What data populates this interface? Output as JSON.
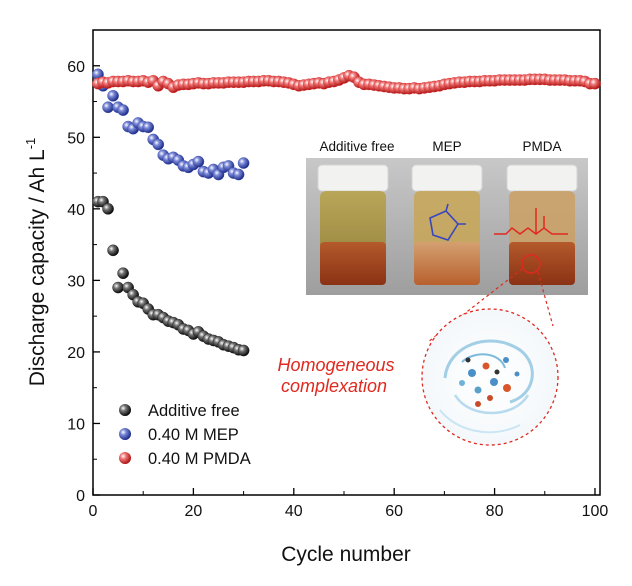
{
  "chart_data": {
    "type": "scatter",
    "xlabel": "Cycle number",
    "ylabel": "Discharge capacity / Ah L",
    "ylabel_sup": "-1",
    "xlim": [
      0,
      101
    ],
    "ylim": [
      0,
      65
    ],
    "xticks": [
      0,
      20,
      40,
      60,
      80,
      100
    ],
    "yticks": [
      0,
      10,
      20,
      30,
      40,
      50,
      60
    ],
    "xtick_labels": [
      "0",
      "20",
      "40",
      "60",
      "80",
      "100"
    ],
    "ytick_labels": [
      "0",
      "10",
      "20",
      "30",
      "40",
      "50",
      "60"
    ],
    "grid": false,
    "legend_position": "bottom-left",
    "series": [
      {
        "name": "Additive free",
        "color": "#222222",
        "x": [
          1,
          2,
          3,
          4,
          5,
          6,
          7,
          8,
          9,
          10,
          11,
          12,
          13,
          14,
          15,
          16,
          17,
          18,
          19,
          20,
          21,
          22,
          23,
          24,
          25,
          26,
          27,
          28,
          29,
          30
        ],
        "y": [
          41,
          41,
          40,
          34.2,
          29,
          31,
          29,
          28,
          27,
          26.8,
          26,
          25.2,
          25.2,
          24.8,
          24.3,
          24.1,
          23.8,
          23.2,
          23,
          22.5,
          22.8,
          22.2,
          21.8,
          21.6,
          21.4,
          21,
          20.8,
          20.6,
          20.3,
          20.2
        ]
      },
      {
        "name": "0.40 M MEP",
        "color": "#3d4fb0",
        "x": [
          1,
          2,
          3,
          4,
          5,
          6,
          7,
          8,
          9,
          10,
          11,
          12,
          13,
          14,
          15,
          16,
          17,
          18,
          19,
          20,
          21,
          22,
          23,
          24,
          25,
          26,
          27,
          28,
          29,
          30
        ],
        "y": [
          58.8,
          57.2,
          54.2,
          55.8,
          54.2,
          53.8,
          51.5,
          51.2,
          52,
          51.5,
          51.4,
          49.7,
          49,
          47.5,
          47,
          47.2,
          46.8,
          46,
          45.8,
          46.2,
          46.6,
          45.2,
          45,
          45.5,
          44.8,
          45.8,
          46,
          45,
          44.8,
          46.4
        ]
      },
      {
        "name": "0.40 M PMDA",
        "color": "#d92b2b",
        "x": [
          1,
          2,
          3,
          4,
          5,
          6,
          7,
          8,
          9,
          10,
          11,
          12,
          13,
          14,
          15,
          16,
          17,
          18,
          19,
          20,
          21,
          22,
          23,
          24,
          25,
          26,
          27,
          28,
          29,
          30,
          31,
          32,
          33,
          34,
          35,
          36,
          37,
          38,
          39,
          40,
          41,
          42,
          43,
          44,
          45,
          46,
          47,
          48,
          49,
          50,
          51,
          52,
          53,
          54,
          55,
          56,
          57,
          58,
          59,
          60,
          61,
          62,
          63,
          64,
          65,
          66,
          67,
          68,
          69,
          70,
          71,
          72,
          73,
          74,
          75,
          76,
          77,
          78,
          79,
          80,
          81,
          82,
          83,
          84,
          85,
          86,
          87,
          88,
          89,
          90,
          91,
          92,
          93,
          94,
          95,
          96,
          97,
          98,
          99,
          100
        ],
        "y": [
          57.5,
          57.7,
          57.6,
          57.8,
          57.8,
          57.8,
          57.9,
          57.8,
          57.8,
          57.9,
          57.7,
          57.9,
          57.2,
          57.8,
          57.5,
          57.0,
          57.3,
          57.4,
          57.4,
          57.5,
          57.6,
          57.5,
          57.5,
          57.6,
          57.6,
          57.6,
          57.7,
          57.7,
          57.7,
          57.7,
          57.8,
          57.8,
          57.8,
          57.9,
          57.9,
          57.8,
          57.8,
          57.7,
          57.6,
          57.4,
          57.2,
          57.3,
          57.4,
          57.5,
          57.6,
          57.5,
          57.7,
          57.8,
          58.0,
          58.3,
          58.6,
          58.4,
          57.7,
          57.4,
          57.4,
          57.3,
          57.2,
          57.1,
          57.0,
          56.9,
          56.9,
          56.8,
          56.8,
          56.9,
          56.8,
          56.9,
          57.0,
          57.1,
          57.2,
          57.4,
          57.5,
          57.6,
          57.7,
          57.7,
          57.8,
          57.8,
          57.8,
          57.9,
          57.9,
          57.9,
          58.0,
          58.0,
          58.0,
          58.0,
          58.0,
          58.0,
          58.1,
          58.1,
          58.1,
          58.1,
          58.0,
          58.0,
          58.0,
          58.0,
          57.9,
          57.9,
          57.9,
          57.8,
          57.5,
          57.5
        ]
      }
    ]
  },
  "inset": {
    "vial_labels": [
      "Additive free",
      "MEP",
      "PMDA"
    ],
    "annotation_line1": "Homogeneous",
    "annotation_line2": "complexation"
  }
}
